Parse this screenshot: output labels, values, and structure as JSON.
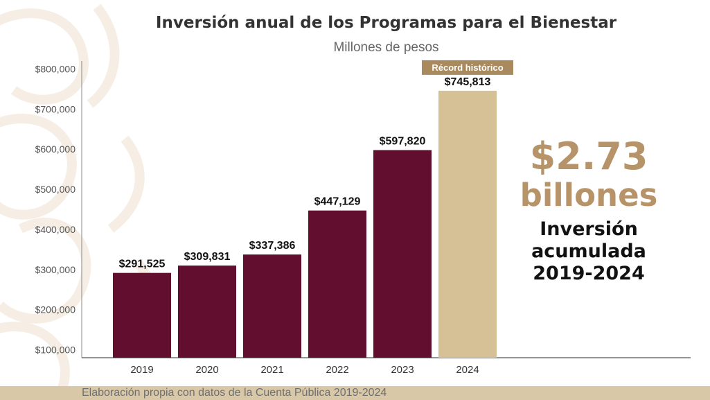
{
  "chart_data": {
    "type": "bar",
    "title": "Inversión anual de los Programas para el Bienestar",
    "subtitle": "Millones de pesos",
    "categories": [
      "2019",
      "2020",
      "2021",
      "2022",
      "2023",
      "2024"
    ],
    "values": [
      291525,
      309831,
      337386,
      447129,
      597820,
      745813
    ],
    "value_labels": [
      "$291,525",
      "$309,831",
      "$337,386",
      "$447,129",
      "$597,820",
      "$745,813"
    ],
    "y_ticks": [
      100000,
      200000,
      300000,
      400000,
      500000,
      600000,
      700000,
      800000
    ],
    "y_tick_labels": [
      "$100,000",
      "$200,000",
      "$300,000",
      "$400,000",
      "$500,000",
      "$600,000",
      "$700,000",
      "$800,000"
    ],
    "ylim": [
      80000,
      820000
    ],
    "grid": false,
    "highlight_index": 5,
    "highlight_badge": "Récord histórico",
    "colors": {
      "bar": "#620f2f",
      "bar_highlight": "#d5c195",
      "badge": "#a88a5e",
      "badge_text": "#ffffff",
      "accent_text": "#b7936a"
    }
  },
  "highlight": {
    "amount": "$2.73",
    "unit": "billones",
    "line1": "Inversión",
    "line2": "acumulada",
    "line3": "2019-2024"
  },
  "footer": {
    "note": "Elaboración propia con datos de la Cuenta Pública 2019-2024"
  }
}
